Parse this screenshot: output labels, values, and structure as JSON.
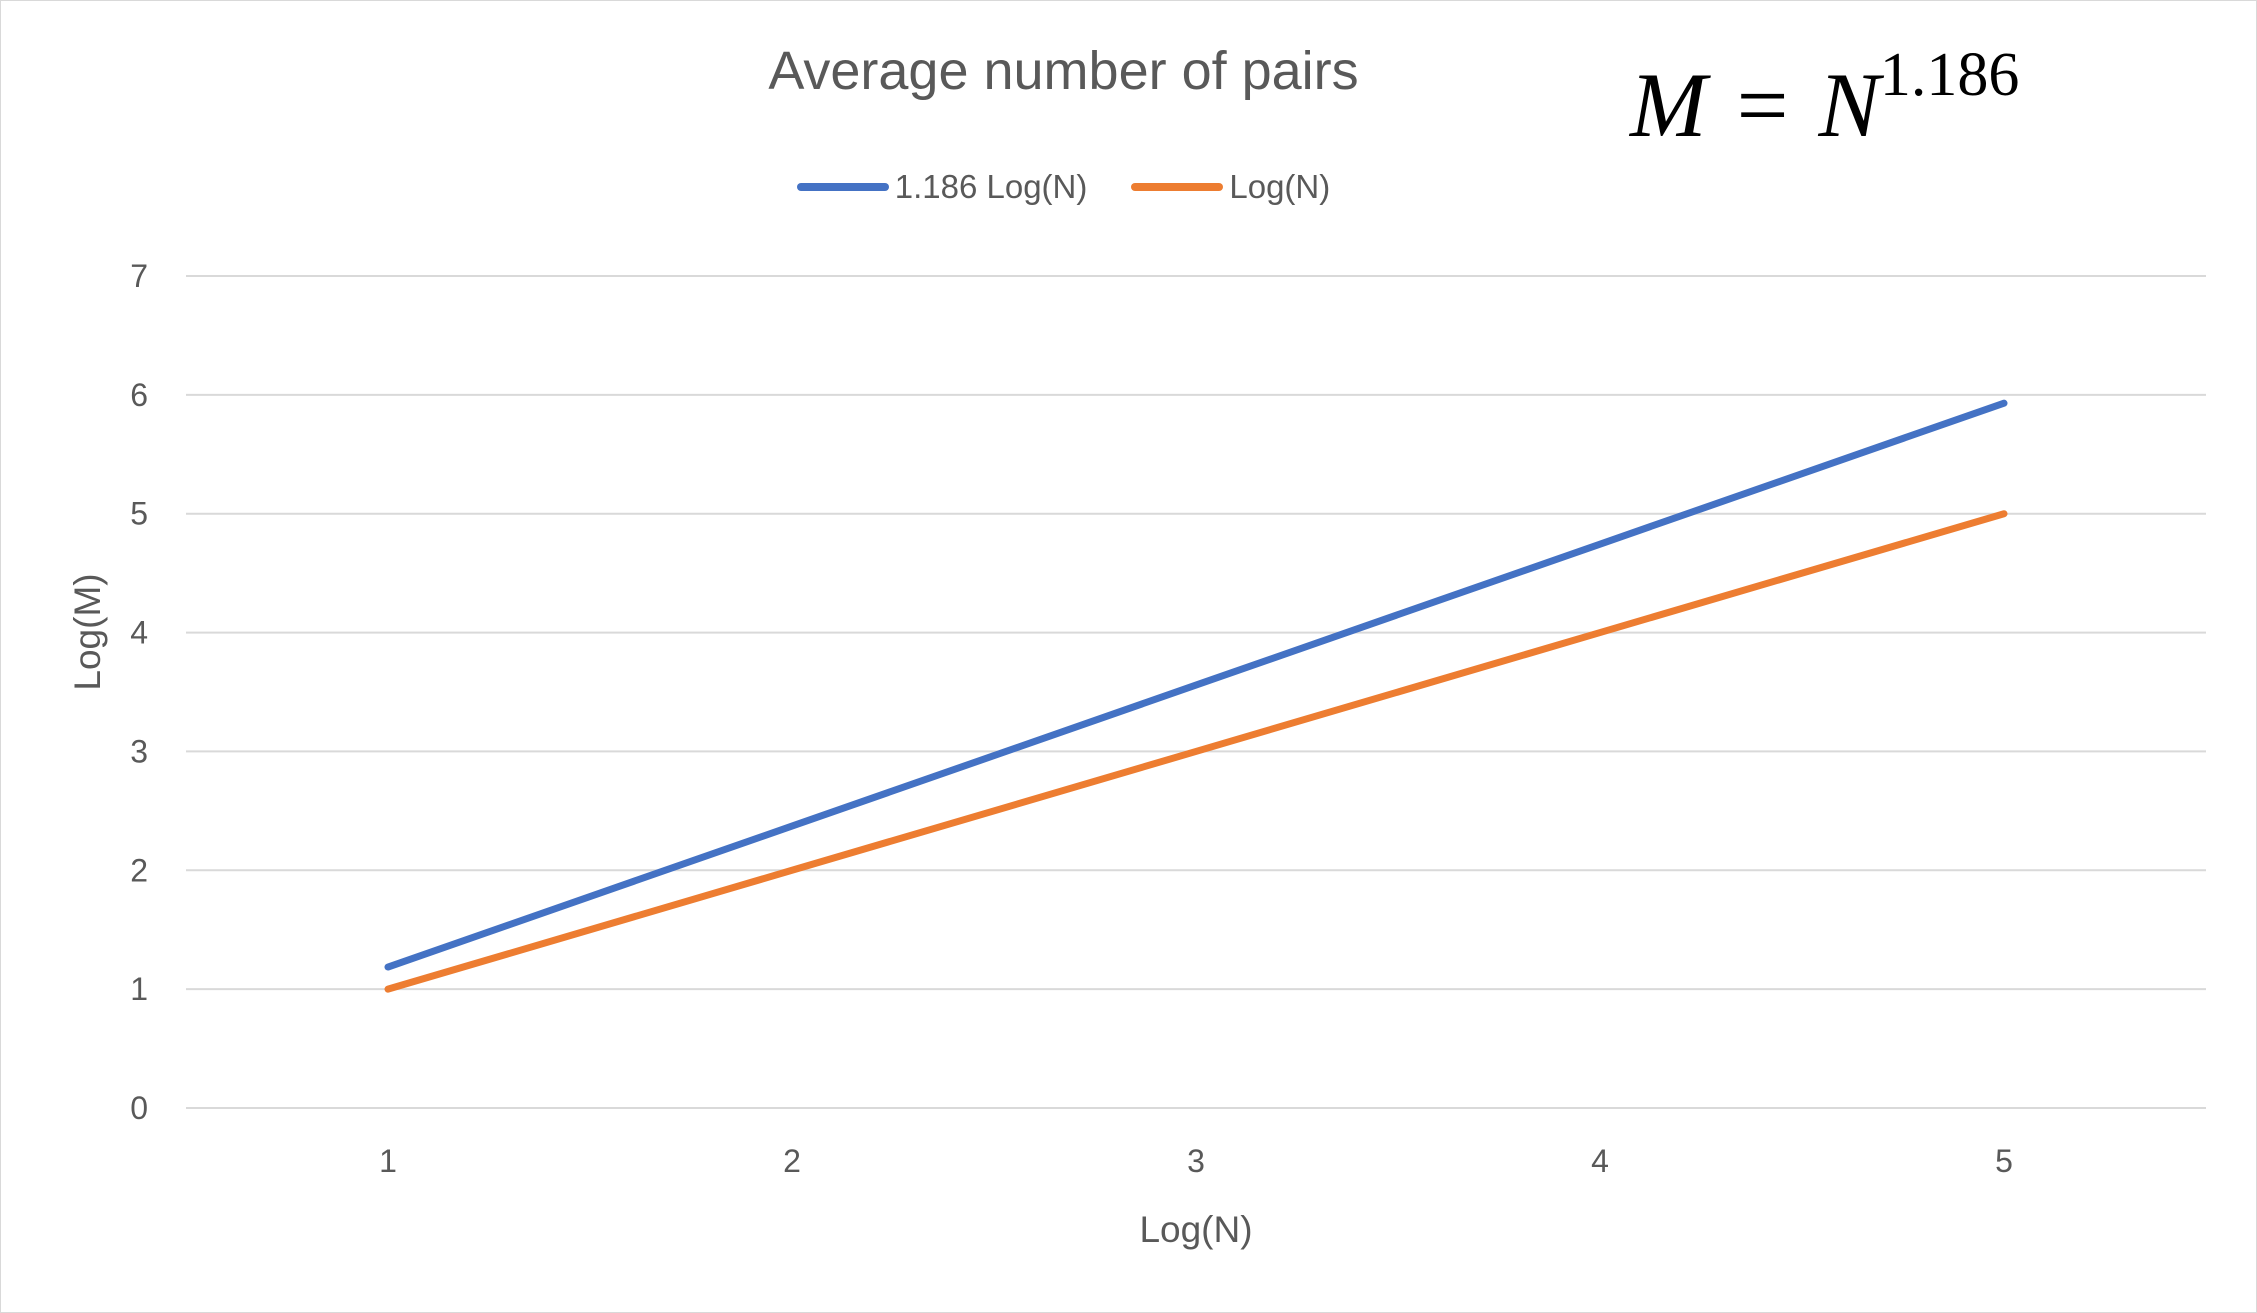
{
  "chart_data": {
    "type": "line",
    "title": "Average number of pairs",
    "annotation": {
      "lhs": "M",
      "op": "=",
      "base": "N",
      "exponent": "1.186"
    },
    "xlabel": "Log(N)",
    "ylabel": "Log(M)",
    "x": [
      1,
      2,
      3,
      4,
      5
    ],
    "xticks": [
      "1",
      "2",
      "3",
      "4",
      "5"
    ],
    "yticks": [
      "0",
      "1",
      "2",
      "3",
      "4",
      "5",
      "6",
      "7"
    ],
    "ylim": [
      0,
      7
    ],
    "grid": true,
    "legend_position": "top",
    "series": [
      {
        "name": "1.186 Log(N)",
        "values": [
          1.186,
          2.372,
          3.558,
          4.744,
          5.93
        ],
        "color": "#4472c4"
      },
      {
        "name": "Log(N)",
        "values": [
          1,
          2,
          3,
          4,
          5
        ],
        "color": "#ed7d31"
      }
    ]
  }
}
